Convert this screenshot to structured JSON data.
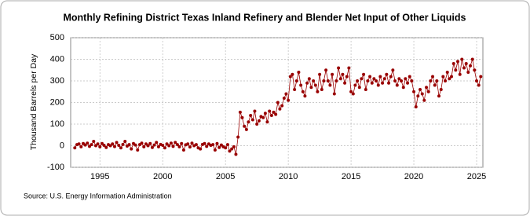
{
  "chart_data": {
    "type": "scatter",
    "title": "Monthly Refining District Texas Inland Refinery and Blender Net Input of Other Liquids",
    "y_label": "Thousand Barrels per Day",
    "source": "Source: U.S. Energy Information Administration",
    "xlim": [
      1992.67,
      2025.5
    ],
    "xticks": [
      1995,
      2000,
      2005,
      2010,
      2015,
      2020,
      2025
    ],
    "ylim": [
      -100,
      500
    ],
    "yticks": [
      -100,
      0,
      100,
      200,
      300,
      400,
      500
    ],
    "grid": true,
    "series": [
      {
        "name": "Texas Inland Refinery and Blender Net Input of Other Liquids",
        "color": "#990000",
        "x": [
          1993.0,
          1993.17,
          1993.33,
          1993.5,
          1993.67,
          1993.83,
          1994.0,
          1994.17,
          1994.33,
          1994.5,
          1994.67,
          1994.83,
          1995.0,
          1995.17,
          1995.33,
          1995.5,
          1995.67,
          1995.83,
          1996.0,
          1996.17,
          1996.33,
          1996.5,
          1996.67,
          1996.83,
          1997.0,
          1997.17,
          1997.33,
          1997.5,
          1997.67,
          1997.83,
          1998.0,
          1998.17,
          1998.33,
          1998.5,
          1998.67,
          1998.83,
          1999.0,
          1999.17,
          1999.33,
          1999.5,
          1999.67,
          1999.83,
          2000.0,
          2000.17,
          2000.33,
          2000.5,
          2000.67,
          2000.83,
          2001.0,
          2001.17,
          2001.33,
          2001.5,
          2001.67,
          2001.83,
          2002.0,
          2002.17,
          2002.33,
          2002.5,
          2002.67,
          2002.83,
          2003.0,
          2003.17,
          2003.33,
          2003.5,
          2003.67,
          2003.83,
          2004.0,
          2004.17,
          2004.33,
          2004.5,
          2004.67,
          2004.83,
          2005.0,
          2005.17,
          2005.33,
          2005.5,
          2005.67,
          2005.83,
          2006.0,
          2006.17,
          2006.33,
          2006.5,
          2006.67,
          2006.83,
          2007.0,
          2007.17,
          2007.33,
          2007.5,
          2007.67,
          2007.83,
          2008.0,
          2008.17,
          2008.33,
          2008.5,
          2008.67,
          2008.83,
          2009.0,
          2009.17,
          2009.33,
          2009.5,
          2009.67,
          2009.83,
          2010.0,
          2010.17,
          2010.33,
          2010.5,
          2010.67,
          2010.83,
          2011.0,
          2011.17,
          2011.33,
          2011.5,
          2011.67,
          2011.83,
          2012.0,
          2012.17,
          2012.33,
          2012.5,
          2012.67,
          2012.83,
          2013.0,
          2013.17,
          2013.33,
          2013.5,
          2013.67,
          2013.83,
          2014.0,
          2014.17,
          2014.33,
          2014.5,
          2014.67,
          2014.83,
          2015.0,
          2015.17,
          2015.33,
          2015.5,
          2015.67,
          2015.83,
          2016.0,
          2016.17,
          2016.33,
          2016.5,
          2016.67,
          2016.83,
          2017.0,
          2017.17,
          2017.33,
          2017.5,
          2017.67,
          2017.83,
          2018.0,
          2018.17,
          2018.33,
          2018.5,
          2018.67,
          2018.83,
          2019.0,
          2019.17,
          2019.33,
          2019.5,
          2019.67,
          2019.83,
          2020.0,
          2020.17,
          2020.33,
          2020.5,
          2020.67,
          2020.83,
          2021.0,
          2021.17,
          2021.33,
          2021.5,
          2021.67,
          2021.83,
          2022.0,
          2022.17,
          2022.33,
          2022.5,
          2022.67,
          2022.83,
          2023.0,
          2023.17,
          2023.33,
          2023.5,
          2023.67,
          2023.83,
          2024.0,
          2024.17,
          2024.33,
          2024.5,
          2024.67,
          2024.83,
          2025.0,
          2025.17,
          2025.33
        ],
        "values": [
          -10,
          5,
          8,
          -5,
          10,
          3,
          12,
          -3,
          5,
          20,
          0,
          8,
          -5,
          10,
          2,
          -8,
          5,
          0,
          8,
          -4,
          15,
          2,
          -10,
          6,
          20,
          -2,
          5,
          -15,
          10,
          3,
          -20,
          5,
          12,
          -5,
          8,
          0,
          10,
          -8,
          3,
          15,
          -5,
          6,
          2,
          -10,
          8,
          0,
          12,
          -3,
          15,
          5,
          -5,
          10,
          -20,
          4,
          8,
          -6,
          12,
          0,
          5,
          -10,
          -15,
          6,
          10,
          -3,
          8,
          2,
          5,
          -20,
          10,
          -8,
          3,
          -5,
          -10,
          5,
          -25,
          -15,
          -5,
          -40,
          40,
          155,
          130,
          90,
          75,
          110,
          140,
          120,
          160,
          100,
          115,
          135,
          130,
          150,
          110,
          160,
          140,
          155,
          145,
          200,
          170,
          185,
          220,
          240,
          210,
          320,
          330,
          260,
          300,
          340,
          280,
          250,
          230,
          290,
          310,
          270,
          300,
          280,
          250,
          330,
          260,
          300,
          350,
          300,
          280,
          330,
          240,
          300,
          360,
          310,
          330,
          290,
          320,
          360,
          250,
          240,
          280,
          300,
          270,
          310,
          330,
          260,
          300,
          320,
          290,
          310,
          300,
          280,
          320,
          290,
          310,
          330,
          290,
          320,
          350,
          300,
          280,
          310,
          300,
          270,
          310,
          290,
          320,
          300,
          250,
          180,
          230,
          260,
          240,
          210,
          270,
          250,
          300,
          320,
          280,
          300,
          230,
          260,
          320,
          300,
          340,
          310,
          320,
          380,
          350,
          390,
          330,
          400,
          360,
          380,
          340,
          370,
          400,
          350,
          300,
          280,
          320
        ]
      }
    ]
  }
}
